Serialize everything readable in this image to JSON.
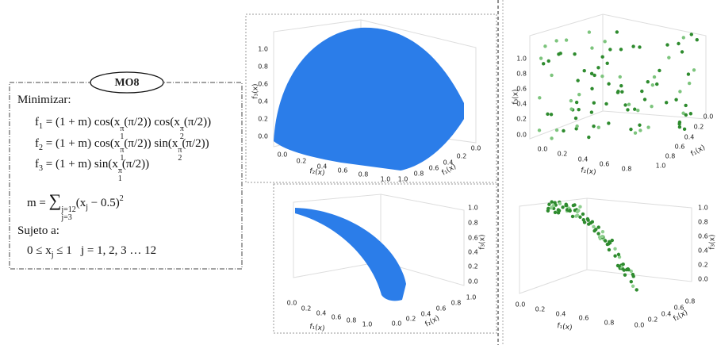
{
  "problem": {
    "title": "MO8",
    "objective_label": "Minimizar:",
    "formulas": [
      {
        "parts": [
          {
            "text": "f",
            "sub": "1"
          },
          {
            "text": " = (1 + m) cos(x",
            "sub": "1",
            "sup": "π"
          },
          {
            "text": "(π/2)) cos(x",
            "sub": "2",
            "sup": "π"
          },
          {
            "text": "(π/2))"
          }
        ]
      },
      {
        "parts": [
          {
            "text": "f",
            "sub": "2"
          },
          {
            "text": " = (1 + m) cos(x",
            "sub": "1",
            "sup": "π"
          },
          {
            "text": "(π/2)) sin(x",
            "sub": "2",
            "sup": "π"
          },
          {
            "text": "(π/2))"
          }
        ]
      },
      {
        "parts": [
          {
            "text": "f",
            "sub": "3"
          },
          {
            "text": " = (1 + m) sin(x",
            "sub": "1",
            "sup": "π"
          },
          {
            "text": "(π/2))"
          }
        ]
      },
      {
        "parts": [
          {
            "text": "m = "
          },
          {
            "text": "∑",
            "sub": "j=3",
            "sup": "j=12"
          },
          {
            "text": "(x",
            "sub": "j"
          },
          {
            "text": " − 0.5)",
            "sup": "2"
          }
        ]
      }
    ],
    "constraint_label": "Sujeto a:",
    "constraint": {
      "parts": [
        {
          "text": "0 ≤ x",
          "sub": "j"
        },
        {
          "text": " ≤ 1   j = 1, 2, 3 … 12"
        }
      ]
    }
  },
  "panels": [
    {
      "axis_labels": {
        "x": "f₂(x)",
        "y": "f₁(x)",
        "z": "f₃(x)"
      },
      "xticks": [
        "0.0",
        "0.2",
        "0.4",
        "0.6",
        "0.8",
        "1.0"
      ],
      "yticks": [
        "0.0",
        "0.2",
        "0.4",
        "0.6",
        "0.8",
        "1.0"
      ],
      "zticks": [
        "0.0",
        "0.2",
        "0.4",
        "0.6",
        "0.8",
        "1.0"
      ]
    },
    {
      "axis_labels": {
        "x": "f₁(x)",
        "y": "f₂(x)",
        "z": "f₃(x)"
      },
      "xticks": [
        "0.0",
        "0.2",
        "0.4",
        "0.6",
        "0.8",
        "1.0"
      ],
      "yticks": [
        "0.0",
        "0.2",
        "0.4",
        "0.6",
        "0.8",
        "1.0"
      ],
      "zticks": [
        "0.0",
        "0.2",
        "0.4",
        "0.6",
        "0.8",
        "1.0"
      ]
    },
    {
      "axis_labels": {
        "x": "f₂(x)",
        "y": "f₁(x)",
        "z": "f₃(x)"
      },
      "xticks": [
        "0.0",
        "0.2",
        "0.4",
        "0.6",
        "0.8"
      ],
      "yticks": [
        "0.0",
        "0.2",
        "0.4",
        "0.6",
        "0.8",
        "1.0"
      ],
      "zticks": [
        "0.0",
        "0.2",
        "0.4",
        "0.6",
        "0.8",
        "1.0"
      ]
    },
    {
      "axis_labels": {
        "x": "f₁(x)",
        "y": "f₂(x)",
        "z": "f₃(x)"
      },
      "xticks": [
        "0.0",
        "0.2",
        "0.4",
        "0.6",
        "0.8"
      ],
      "yticks": [
        "0.0",
        "0.2",
        "0.4",
        "0.6",
        "0.8"
      ],
      "zticks": [
        "0.0",
        "0.2",
        "0.4",
        "0.6",
        "0.8",
        "1.0"
      ]
    }
  ]
}
